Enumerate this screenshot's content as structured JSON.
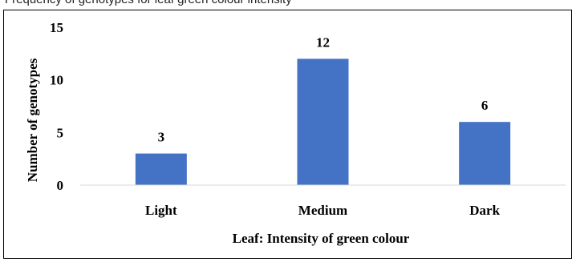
{
  "caption_fragment": "Frequency of genotypes for leaf green colour intensity",
  "chart_data": {
    "type": "bar",
    "categories": [
      "Light",
      "Medium",
      "Dark"
    ],
    "values": [
      3,
      12,
      6
    ],
    "data_labels": [
      "3",
      "12",
      "6"
    ],
    "title": "",
    "xlabel": "Leaf: Intensity of green colour",
    "ylabel": "Number of genotypes",
    "ylim": [
      0,
      15
    ],
    "yticks": [
      "0",
      "5",
      "10",
      "15"
    ],
    "bar_color": "#4472C4",
    "grid": false,
    "legend": "none"
  }
}
